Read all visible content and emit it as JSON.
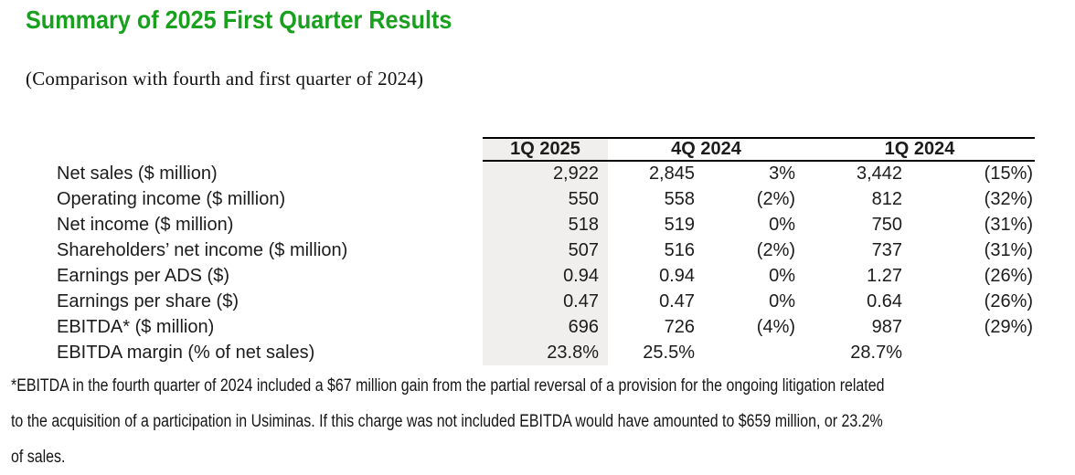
{
  "page": {
    "title": "Summary of 2025 First Quarter Results",
    "subtitle": "(Comparison with fourth and first quarter of 2024)"
  },
  "table": {
    "columns": {
      "q1_2025": "1Q 2025",
      "q4_2024": "4Q 2024",
      "q1_2024": "1Q 2024"
    },
    "rows": [
      {
        "label": "Net sales ($ million)",
        "q1_2025": "2,922",
        "q4_2024": "2,845",
        "q4_2024_chg": "3%",
        "q1_2024": "3,442",
        "q1_2024_chg": "(15%)"
      },
      {
        "label": "Operating income ($ million)",
        "q1_2025": "550",
        "q4_2024": "558",
        "q4_2024_chg": "(2%)",
        "q1_2024": "812",
        "q1_2024_chg": "(32%)"
      },
      {
        "label": "Net income ($ million)",
        "q1_2025": "518",
        "q4_2024": "519",
        "q4_2024_chg": "0%",
        "q1_2024": "750",
        "q1_2024_chg": "(31%)"
      },
      {
        "label": "Shareholders’ net income ($ million)",
        "q1_2025": "507",
        "q4_2024": "516",
        "q4_2024_chg": "(2%)",
        "q1_2024": "737",
        "q1_2024_chg": "(31%)"
      },
      {
        "label": "Earnings per ADS ($)",
        "q1_2025": "0.94",
        "q4_2024": "0.94",
        "q4_2024_chg": "0%",
        "q1_2024": "1.27",
        "q1_2024_chg": "(26%)"
      },
      {
        "label": "Earnings per share ($)",
        "q1_2025": "0.47",
        "q4_2024": "0.47",
        "q4_2024_chg": "0%",
        "q1_2024": "0.64",
        "q1_2024_chg": "(26%)"
      },
      {
        "label": "EBITDA* ($ million)",
        "q1_2025": "696",
        "q4_2024": "726",
        "q4_2024_chg": "(4%)",
        "q1_2024": "987",
        "q1_2024_chg": "(29%)"
      },
      {
        "label": "EBITDA margin (% of net sales)",
        "q1_2025": "23.8%",
        "q4_2024": "25.5%",
        "q4_2024_chg": "",
        "q1_2024": "28.7%",
        "q1_2024_chg": ""
      }
    ]
  },
  "footnote": {
    "lines": [
      "*EBITDA in the fourth quarter of 2024 included a $67 million gain from the partial reversal of a provision for the ongoing litigation related",
      "to the acquisition of a participation in Usiminas. If this charge was not included EBITDA would have amounted to $659 million, or 23.2%",
      "of sales."
    ]
  },
  "colors": {
    "accent_green": "#18a01e",
    "highlight_gray": "#f0efed",
    "rule_black": "#000000",
    "text_ink": "#1c1c1c"
  }
}
